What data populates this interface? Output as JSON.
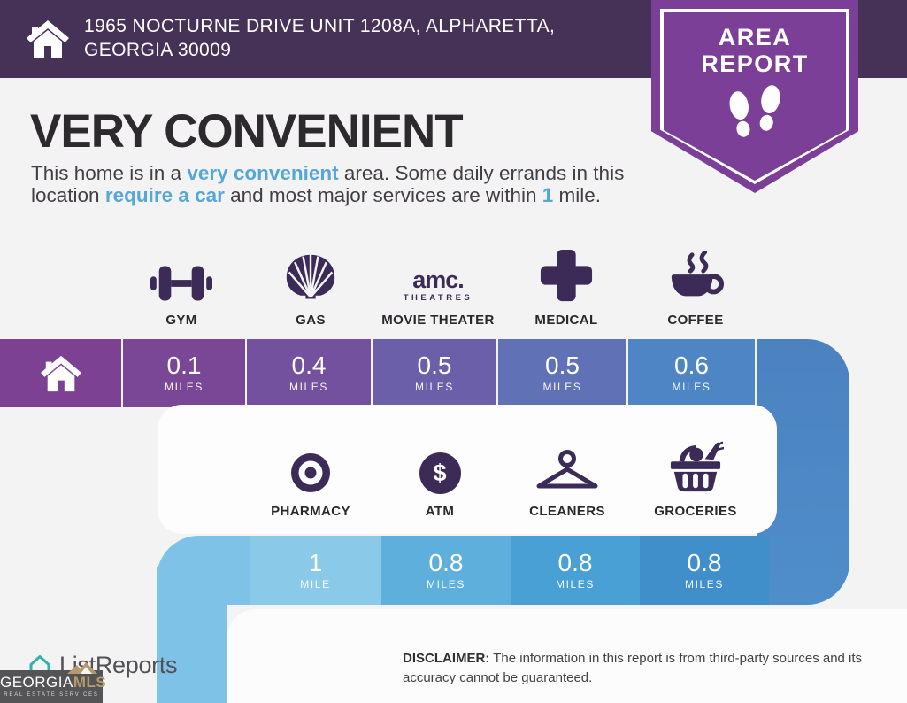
{
  "header": {
    "address_line1": "1965 NOCTURNE DRIVE UNIT 1208A, ALPHARETTA,",
    "address_line2": "GEORGIA 30009"
  },
  "badge": {
    "line1": "AREA",
    "line2": "REPORT"
  },
  "headline": "VERY CONVENIENT",
  "paragraph": {
    "segments": [
      {
        "text": "This home is in a ",
        "h": false
      },
      {
        "text": "very convenient",
        "h": true
      },
      {
        "text": " area. Some daily errands in this location ",
        "h": false
      },
      {
        "text": "require a car",
        "h": true
      },
      {
        "text": " and most major services are within ",
        "h": false
      },
      {
        "text": "1",
        "h": true
      },
      {
        "text": " mile.",
        "h": false
      }
    ]
  },
  "row1": {
    "categories": [
      {
        "label": "GYM"
      },
      {
        "label": "GAS"
      },
      {
        "label": "MOVIE THEATER",
        "logo_main": "amc",
        "logo_sub": "THEATRES"
      },
      {
        "label": "MEDICAL"
      },
      {
        "label": "COFFEE"
      }
    ],
    "home_color": "#7C4192",
    "cells": [
      {
        "value": "0.1",
        "unit": "MILES",
        "color": "#7A4796"
      },
      {
        "value": "0.4",
        "unit": "MILES",
        "color": "#74519F"
      },
      {
        "value": "0.5",
        "unit": "MILES",
        "color": "#6C5FA9"
      },
      {
        "value": "0.5",
        "unit": "MILES",
        "color": "#6171B6"
      },
      {
        "value": "0.6",
        "unit": "MILES",
        "color": "#4E86C5"
      }
    ]
  },
  "row2": {
    "categories": [
      {
        "label": "PHARMACY"
      },
      {
        "label": "ATM",
        "symbol": "$"
      },
      {
        "label": "CLEANERS"
      },
      {
        "label": "GROCERIES"
      }
    ],
    "pad_color": "#7EC3E7",
    "cells": [
      {
        "value": "1",
        "unit": "MILE",
        "color": "#8BC9E9"
      },
      {
        "value": "0.8",
        "unit": "MILES",
        "color": "#5FAFDC"
      },
      {
        "value": "0.8",
        "unit": "MILES",
        "color": "#48A0D5"
      },
      {
        "value": "0.8",
        "unit": "MILES",
        "color": "#418FCA"
      }
    ]
  },
  "footer": {
    "brand": "ListReports",
    "mls_name_a": "GEORGIA",
    "mls_name_b": "MLS",
    "mls_sub": "REAL ESTATE SERVICES",
    "disclaimer_label": "DISCLAIMER:",
    "disclaimer_text": " The information in this report is from third-party sources and its accuracy cannot be guaranteed."
  },
  "colors": {
    "header_bg": "#463157",
    "badge_purple": "#7C3F97",
    "highlight_blue": "#56A7D8",
    "icon_ink": "#3B2B56",
    "background": "#F4F3F4"
  }
}
